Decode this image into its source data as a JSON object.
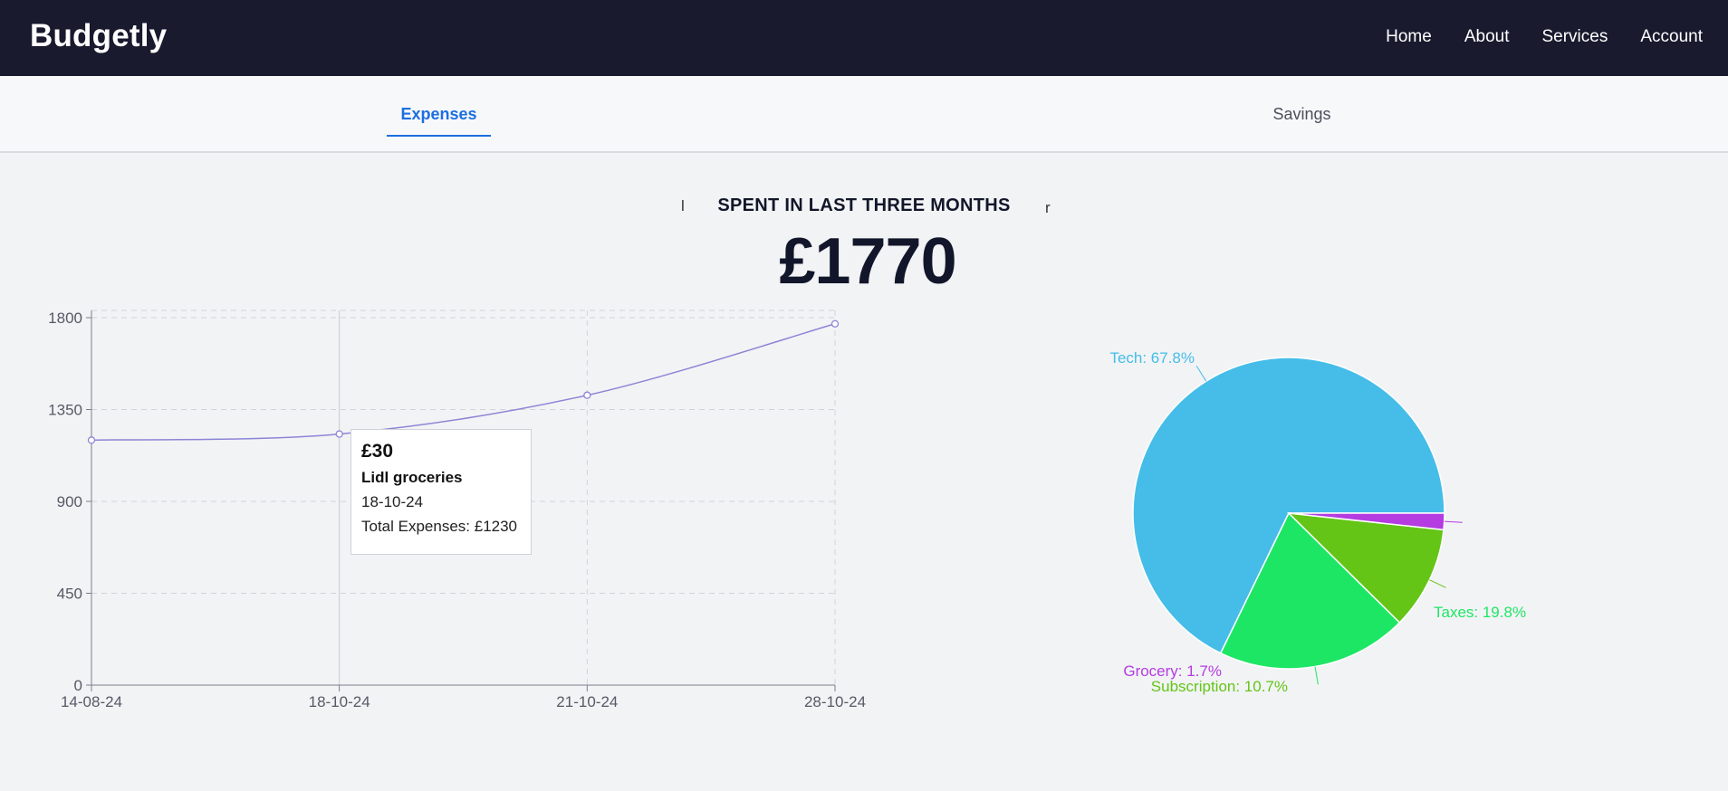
{
  "app": {
    "brand": "Budgetly"
  },
  "nav": {
    "items": [
      "Home",
      "About",
      "Services",
      "Account"
    ]
  },
  "tabs": {
    "expenses": "Expenses",
    "savings": "Savings"
  },
  "summary": {
    "prev_glyph": "l",
    "label": "SPENT IN LAST THREE MONTHS",
    "next_glyph": "r",
    "amount": "£1770"
  },
  "tooltip": {
    "amount": "£30",
    "name": "Lidl groceries",
    "date": "18-10-24",
    "total": "Total Expenses: £1230"
  },
  "colors": {
    "line": "#8c85d6",
    "tech": "#45bde8",
    "taxes": "#1ee665",
    "subscription": "#64c517",
    "grocery": "#b43ce0"
  },
  "chart_data": [
    {
      "type": "line",
      "x": [
        "14-08-24",
        "18-10-24",
        "21-10-24",
        "28-10-24"
      ],
      "series": [
        {
          "values": [
            1200,
            1230,
            1420,
            1770
          ]
        }
      ],
      "ylim": [
        0,
        1800
      ],
      "yticks": [
        0,
        450,
        900,
        1350,
        1800
      ],
      "grid": true
    },
    {
      "type": "pie",
      "slices": [
        {
          "label": "Tech: 67.8%",
          "value": 67.8,
          "color": "#45bde8"
        },
        {
          "label": "Taxes: 19.8%",
          "value": 19.8,
          "color": "#1ee665"
        },
        {
          "label": "Subscription: 10.7%",
          "value": 10.7,
          "color": "#64c517"
        },
        {
          "label": "Grocery: 1.7%",
          "value": 1.7,
          "color": "#b43ce0"
        }
      ]
    }
  ]
}
